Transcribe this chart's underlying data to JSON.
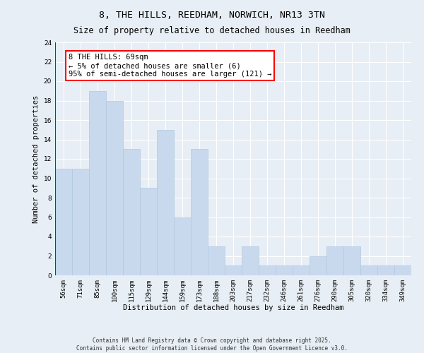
{
  "title": "8, THE HILLS, REEDHAM, NORWICH, NR13 3TN",
  "subtitle": "Size of property relative to detached houses in Reedham",
  "xlabel": "Distribution of detached houses by size in Reedham",
  "ylabel": "Number of detached properties",
  "bar_color": "#c9d9ed",
  "bar_edgecolor": "#b0c8e0",
  "background_color": "#e8eef5",
  "categories": [
    "56sqm",
    "71sqm",
    "85sqm",
    "100sqm",
    "115sqm",
    "129sqm",
    "144sqm",
    "159sqm",
    "173sqm",
    "188sqm",
    "203sqm",
    "217sqm",
    "232sqm",
    "246sqm",
    "261sqm",
    "276sqm",
    "290sqm",
    "305sqm",
    "320sqm",
    "334sqm",
    "349sqm"
  ],
  "values": [
    11,
    11,
    19,
    18,
    13,
    9,
    15,
    6,
    13,
    3,
    1,
    3,
    1,
    1,
    1,
    2,
    3,
    3,
    1,
    1,
    1
  ],
  "ylim": [
    0,
    24
  ],
  "yticks": [
    0,
    2,
    4,
    6,
    8,
    10,
    12,
    14,
    16,
    18,
    20,
    22,
    24
  ],
  "annotation_text": "8 THE HILLS: 69sqm\n← 5% of detached houses are smaller (6)\n95% of semi-detached houses are larger (121) →",
  "vline_color": "#cc0000",
  "footer_line1": "Contains HM Land Registry data © Crown copyright and database right 2025.",
  "footer_line2": "Contains public sector information licensed under the Open Government Licence v3.0.",
  "grid_color": "#ffffff",
  "title_fontsize": 9.5,
  "subtitle_fontsize": 8.5,
  "xlabel_fontsize": 7.5,
  "ylabel_fontsize": 7.5,
  "tick_fontsize": 6.5,
  "annotation_fontsize": 7.5,
  "footer_fontsize": 5.5
}
